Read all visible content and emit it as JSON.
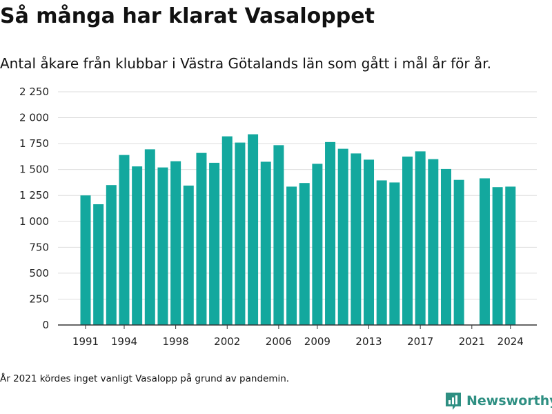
{
  "header": {
    "title": "Så många har klarat Vasaloppet",
    "subtitle": "Antal åkare från klubbar i Västra Götalands län som gått i mål år för år."
  },
  "footer": {
    "note": "År 2021 kördes inget vanligt Vasalopp på grund av pandemin.",
    "brand": "Newsworthy"
  },
  "colors": {
    "bar": "#13a89e",
    "grid": "#dddddd",
    "axis": "#333333",
    "brand": "#2e8f82"
  },
  "chart_data": {
    "type": "bar",
    "title": "Så många har klarat Vasaloppet",
    "subtitle": "Antal åkare från klubbar i Västra Götalands län som gått i mål år för år.",
    "x": [
      1991,
      1992,
      1993,
      1994,
      1995,
      1996,
      1997,
      1998,
      1999,
      2000,
      2001,
      2002,
      2003,
      2004,
      2005,
      2006,
      2007,
      2008,
      2009,
      2010,
      2011,
      2012,
      2013,
      2014,
      2015,
      2016,
      2017,
      2018,
      2019,
      2020,
      2021,
      2022,
      2023,
      2024
    ],
    "values": [
      1250,
      1165,
      1350,
      1640,
      1530,
      1695,
      1520,
      1580,
      1345,
      1660,
      1565,
      1820,
      1760,
      1840,
      1575,
      1735,
      1335,
      1370,
      1555,
      1765,
      1700,
      1655,
      1595,
      1395,
      1375,
      1625,
      1675,
      1600,
      1505,
      1400,
      null,
      1415,
      1330,
      1335
    ],
    "x_tick_labels": [
      "1991",
      "1994",
      "1998",
      "2002",
      "2006",
      "2009",
      "2013",
      "2017",
      "2021",
      "2024"
    ],
    "y_ticks": [
      0,
      250,
      500,
      750,
      1000,
      1250,
      1500,
      1750,
      2000,
      2250
    ],
    "y_tick_labels": [
      "0",
      "250",
      "500",
      "750",
      "1 000",
      "1 250",
      "1 500",
      "1 750",
      "2 000",
      "2 250"
    ],
    "ylim": [
      0,
      2250
    ],
    "xlabel": "",
    "ylabel": "",
    "grid": true,
    "legend": "none"
  }
}
